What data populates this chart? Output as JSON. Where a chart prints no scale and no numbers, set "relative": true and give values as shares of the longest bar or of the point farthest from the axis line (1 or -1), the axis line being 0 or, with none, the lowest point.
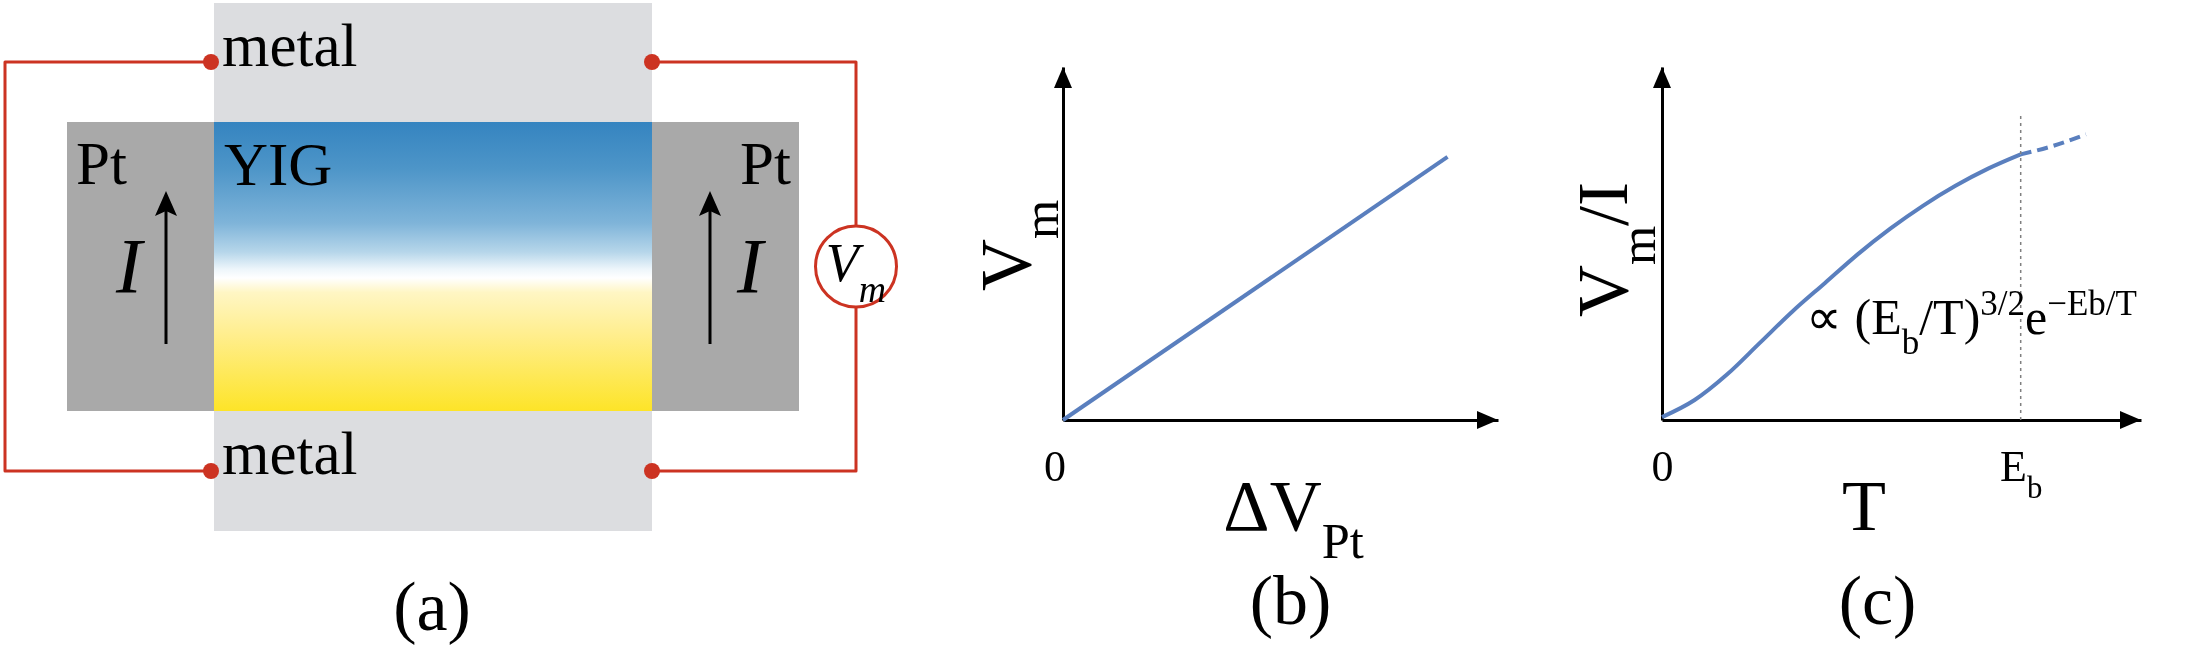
{
  "chart_data": [
    {
      "type": "other",
      "title": "(a)",
      "annotations": [
        "metal",
        "metal",
        "Pt",
        "Pt",
        "YIG",
        "I",
        "I",
        "V$_{m}$"
      ]
    },
    {
      "type": "line",
      "title": "(b)",
      "xlabel": "ΔV$_{Pt}$",
      "ylabel": "V$_{m}$",
      "relative": true,
      "tick_labels": "x",
      "categories": [
        null,
        null
      ],
      "series": [
        {
          "color": "#5a7fbe",
          "values": [
            0,
            1
          ]
        }
      ],
      "annotations": [
        "0"
      ]
    },
    {
      "type": "line",
      "title": "(c)",
      "xlabel": "T",
      "ylabel": "V$_{m}$/I",
      "relative": true,
      "tick_labels": "x",
      "categories": [
        "0",
        null,
        null,
        null,
        null,
        null,
        null,
        null,
        null,
        null,
        null,
        "E$_{b}$",
        null,
        null
      ],
      "series": [
        {
          "color": "#5a7fbe",
          "values": [
            0.01,
            0.07,
            0.16,
            0.27,
            0.38,
            0.48,
            0.58,
            0.67,
            0.75,
            0.82,
            0.88,
            0.93,
            null,
            null
          ]
        },
        {
          "color": "#5a7fbe",
          "line_style": "dashed",
          "values": [
            null,
            null,
            null,
            null,
            null,
            null,
            null,
            null,
            null,
            null,
            null,
            0.93,
            0.96,
            1
          ]
        }
      ],
      "ref_lines": [
        {
          "axis": "x",
          "value": "E$_{b}$",
          "color": "#808080",
          "line_style": "dotted"
        }
      ],
      "annotations": [
        "∝ (E$_{b}$/T)$^{3/2}$e$^{−Eb/T}$"
      ]
    }
  ]
}
